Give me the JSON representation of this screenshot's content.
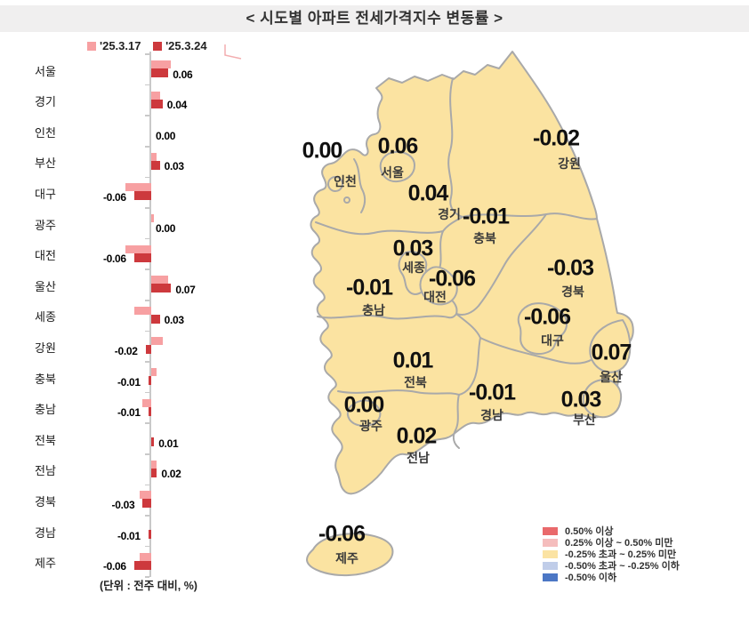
{
  "title": "< 시도별 아파트 전세가격지수 변동률 >",
  "unit_note": "(단위 : 전주 대비, %)",
  "chart_legend": {
    "prev_label": "'25.3.17",
    "curr_label": "'25.3.24"
  },
  "colors": {
    "prev_bar": "#F7A0A2",
    "curr_bar": "#CD393D",
    "map_fill": "#FBE3A1",
    "map_border": "#A9A9A9",
    "title_band": "#F0EFEF"
  },
  "chart_data": {
    "type": "bar",
    "orientation": "horizontal",
    "unit": "% (전주 대비)",
    "categories": [
      "서울",
      "경기",
      "인천",
      "부산",
      "대구",
      "광주",
      "대전",
      "울산",
      "세종",
      "강원",
      "충북",
      "충남",
      "전북",
      "전남",
      "경북",
      "경남",
      "제주"
    ],
    "series": [
      {
        "name": "'25.3.17",
        "color": "#F7A0A2",
        "values": [
          0.07,
          0.03,
          0.0,
          0.02,
          -0.09,
          0.01,
          -0.09,
          0.06,
          -0.06,
          0.04,
          0.02,
          -0.03,
          0.0,
          0.02,
          -0.04,
          0.0,
          -0.04
        ]
      },
      {
        "name": "'25.3.24",
        "color": "#CD393D",
        "values": [
          0.06,
          0.04,
          0.0,
          0.03,
          -0.06,
          0.0,
          -0.06,
          0.07,
          0.03,
          -0.02,
          -0.01,
          -0.01,
          0.01,
          0.02,
          -0.03,
          -0.01,
          -0.06
        ]
      }
    ],
    "value_labels": [
      "0.06",
      "0.04",
      "0.00",
      "0.03",
      "-0.06",
      "0.00",
      "-0.06",
      "0.07",
      "0.03",
      "-0.02",
      "-0.01",
      "-0.01",
      "0.01",
      "0.02",
      "-0.03",
      "-0.01",
      "-0.06"
    ],
    "xlim": [
      -0.1,
      0.1
    ],
    "grid": false,
    "legend_position": "top-left"
  },
  "map": {
    "regions": [
      {
        "name": "인천",
        "value": "0.00"
      },
      {
        "name": "서울",
        "value": "0.06"
      },
      {
        "name": "경기",
        "value": "0.04"
      },
      {
        "name": "강원",
        "value": "-0.02"
      },
      {
        "name": "충북",
        "value": "-0.01"
      },
      {
        "name": "세종",
        "value": "0.03"
      },
      {
        "name": "대전",
        "value": "-0.06"
      },
      {
        "name": "충남",
        "value": "-0.01"
      },
      {
        "name": "경북",
        "value": "-0.03"
      },
      {
        "name": "대구",
        "value": "-0.06"
      },
      {
        "name": "울산",
        "value": "0.07"
      },
      {
        "name": "전북",
        "value": "0.01"
      },
      {
        "name": "경남",
        "value": "-0.01"
      },
      {
        "name": "부산",
        "value": "0.03"
      },
      {
        "name": "광주",
        "value": "0.00"
      },
      {
        "name": "전남",
        "value": "0.02"
      },
      {
        "name": "제주",
        "value": "-0.06"
      }
    ],
    "legend": [
      {
        "label": "0.50% 이상",
        "color": "#E9696B"
      },
      {
        "label": "0.25% 이상 ~ 0.50% 미만",
        "color": "#F5BDBD"
      },
      {
        "label": "-0.25% 초과 ~ 0.25% 미만",
        "color": "#FBE3A3"
      },
      {
        "label": "-0.50% 초과 ~ -0.25% 이하",
        "color": "#C0CDE9"
      },
      {
        "label": "-0.50% 이하",
        "color": "#4C77C5"
      }
    ]
  }
}
